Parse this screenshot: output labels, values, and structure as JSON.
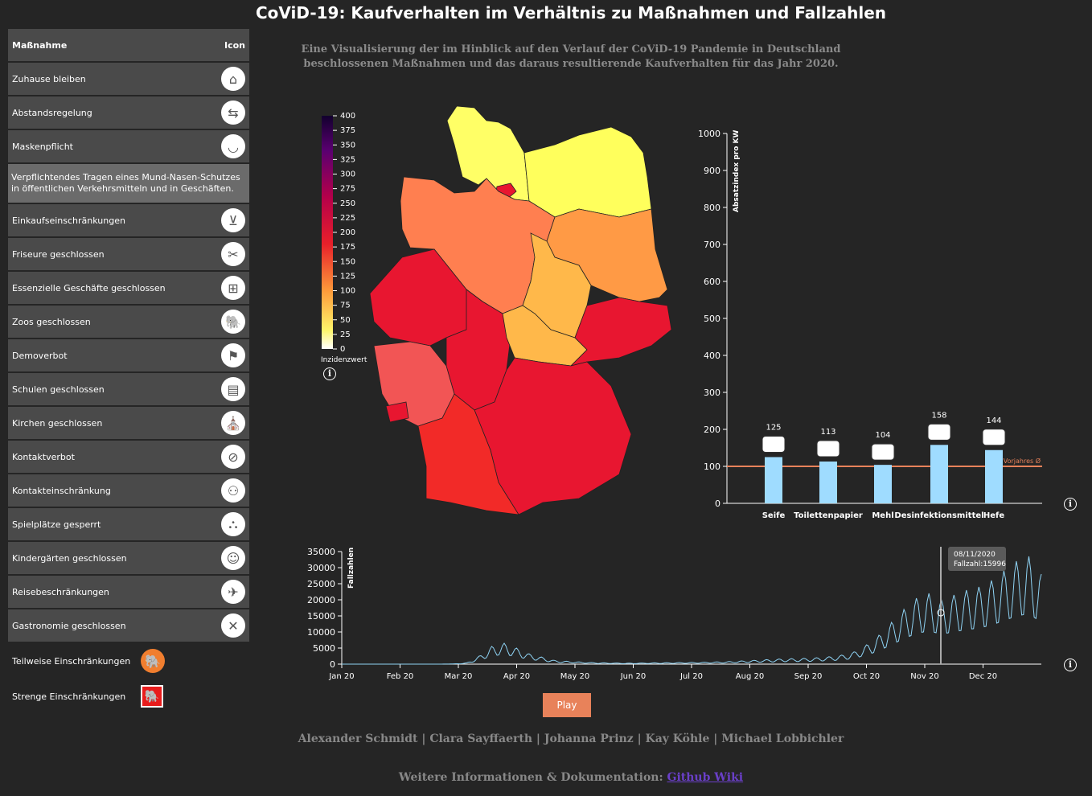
{
  "title": "CoViD-19: Kaufverhalten im Verhältnis zu Maßnahmen und Fallzahlen",
  "subtitle_line1": "Eine Visualisierung der im Hinblick auf den Verlauf der CoViD-19 Pandemie in Deutschland",
  "subtitle_line2": "beschlossenen Maßnahmen und das daraus resultierende Kaufverhalten für das Jahr 2020.",
  "measures_table": {
    "header_measure": "Maßnahme",
    "header_icon": "Icon",
    "rows": [
      {
        "label": "Zuhause bleiben",
        "icon": "home-icon",
        "glyph": "⌂"
      },
      {
        "label": "Abstandsregelung",
        "icon": "distance-icon",
        "glyph": "⇆"
      },
      {
        "label": "Maskenpflicht",
        "icon": "mask-icon",
        "glyph": "◡"
      },
      {
        "label": "Einkaufseinschränkungen",
        "icon": "cart-icon",
        "glyph": "⊻"
      },
      {
        "label": "Friseure geschlossen",
        "icon": "scissors-icon",
        "glyph": "✂"
      },
      {
        "label": "Essenzielle Geschäfte geschlossen",
        "icon": "trolley-icon",
        "glyph": "⊞"
      },
      {
        "label": "Zoos geschlossen",
        "icon": "elephant-icon",
        "glyph": "🐘"
      },
      {
        "label": "Demoverbot",
        "icon": "protest-icon",
        "glyph": "⚑"
      },
      {
        "label": "Schulen geschlossen",
        "icon": "school-icon",
        "glyph": "▤"
      },
      {
        "label": "Kirchen geschlossen",
        "icon": "church-icon",
        "glyph": "⛪"
      },
      {
        "label": "Kontaktverbot",
        "icon": "no-contact-icon",
        "glyph": "⊘"
      },
      {
        "label": "Kontakteinschränkung",
        "icon": "people-icon",
        "glyph": "⚇"
      },
      {
        "label": "Spielplätze gesperrt",
        "icon": "playground-icon",
        "glyph": "⛬"
      },
      {
        "label": "Kindergärten geschlossen",
        "icon": "child-icon",
        "glyph": "☺"
      },
      {
        "label": "Reisebeschränkungen",
        "icon": "airplane-icon",
        "glyph": "✈"
      },
      {
        "label": "Gastronomie geschlossen",
        "icon": "cutlery-icon",
        "glyph": "✕"
      }
    ],
    "mask_description": "Verpflichtendes Tragen eines Mund-Nasen-Schutzes in öffentlichen Verkehrsmitteln und in Geschäften."
  },
  "legend": {
    "partial": "Teilweise Einschränkungen",
    "strict": "Strenge Einschränkungen",
    "partial_color": "#f07e2f",
    "strict_color": "#e81c1c"
  },
  "map": {
    "scale_label": "Inzidenzwert",
    "scale_ticks": [
      "400",
      "375",
      "350",
      "325",
      "300",
      "275",
      "250",
      "225",
      "200",
      "175",
      "150",
      "125",
      "100",
      "75",
      "50",
      "25",
      "0"
    ]
  },
  "chart_data": [
    {
      "type": "bar",
      "ylabel": "Absatzindex pro KW",
      "categories": [
        "Seife",
        "Toilettenpapier",
        "Mehl",
        "Desinfektionsmittel",
        "Hefe"
      ],
      "values": [
        125,
        113,
        104,
        158,
        144
      ],
      "ylim": [
        0,
        1000
      ],
      "yticks": [
        0,
        100,
        200,
        300,
        400,
        500,
        600,
        700,
        800,
        900,
        1000
      ],
      "reference_line": {
        "label": "Vorjahres Ø",
        "value": 100
      },
      "bar_color": "#9fdcff",
      "reference_color": "#e8825a"
    },
    {
      "type": "line",
      "ylabel": "Fallzahlen",
      "xticks": [
        "Jan 20",
        "Feb 20",
        "Mar 20",
        "Apr 20",
        "May 20",
        "Jun 20",
        "Jul 20",
        "Aug 20",
        "Sep 20",
        "Oct 20",
        "Nov 20",
        "Dec 20"
      ],
      "yticks": [
        0,
        5000,
        10000,
        15000,
        20000,
        25000,
        30000,
        35000
      ],
      "ylim": [
        0,
        35000
      ],
      "tooltip_date": "08/11/2020",
      "tooltip_value": "Fallzahl:15996",
      "line_color": "#8fd3f4",
      "weekly_points": [
        0,
        0,
        0,
        0,
        0,
        0,
        0,
        0,
        0,
        100,
        400,
        2500,
        5500,
        6500,
        5000,
        3200,
        2200,
        1200,
        900,
        700,
        500,
        400,
        350,
        300,
        350,
        400,
        450,
        500,
        550,
        600,
        700,
        800,
        1000,
        1200,
        1400,
        1600,
        1700,
        1800,
        2000,
        2300,
        2800,
        3800,
        6000,
        9000,
        13000,
        17000,
        20500,
        22000,
        20000,
        21500,
        23000,
        24000,
        26000,
        29000,
        32000,
        33500,
        28000
      ]
    }
  ],
  "play_label": "Play",
  "authors": "Alexander Schmidt | Clara Sayffaerth | Johanna Prinz | Kay Köhle | Michael Lobbichler",
  "more_info_prefix": "Weitere Informationen & Dokumentation: ",
  "more_info_link": "Github Wiki"
}
